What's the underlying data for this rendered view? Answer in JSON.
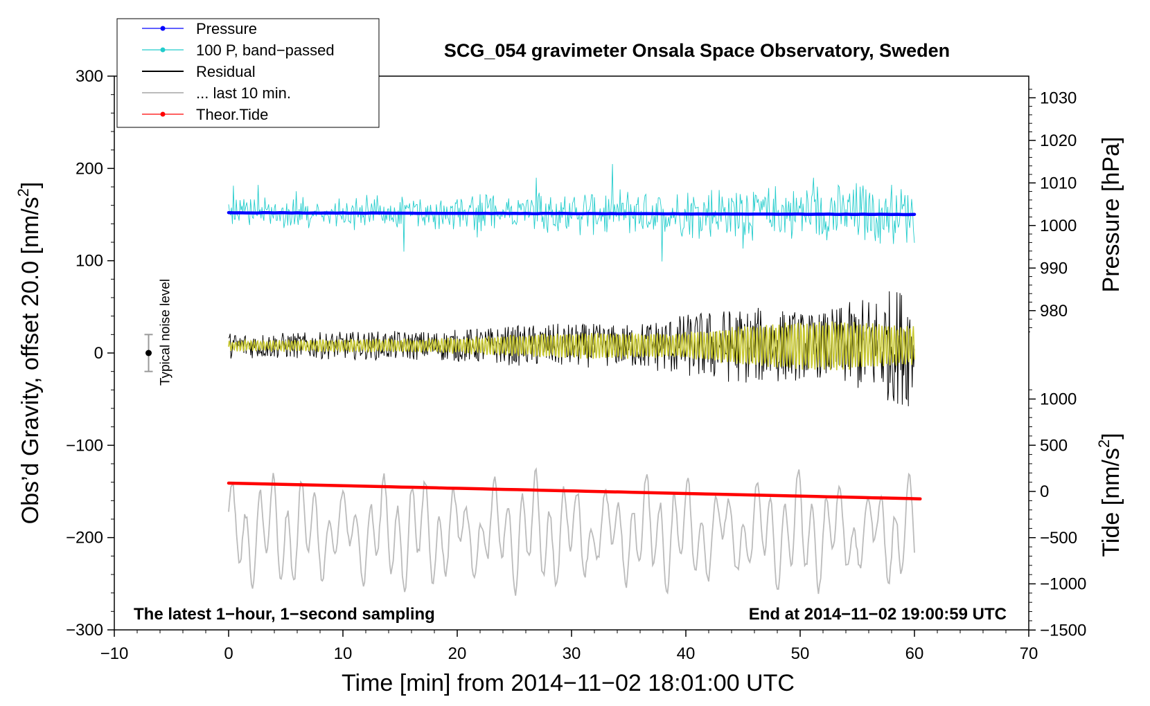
{
  "chart_data": {
    "type": "line",
    "title": "SCG_054 gravimeter Onsala Space Observatory, Sweden",
    "xlabel": "Time [min] from 2014−11−02 18:01:00 UTC",
    "ylabel_left_main": "Obs’d Gravity, offset 20.0 [nm/s",
    "ylabel_left_sup": "2",
    "ylabel_left_end": "]",
    "ylabel_right_pressure": "Pressure [hPa]",
    "ylabel_right_tide_main": "Tide [nm/s",
    "ylabel_right_tide_sup": "2",
    "ylabel_right_tide_end": "]",
    "xlim": [
      -10,
      70
    ],
    "ylim_left": [
      -300,
      300
    ],
    "xticks": [
      -10,
      0,
      10,
      20,
      30,
      40,
      50,
      60,
      70
    ],
    "xtick_labels": [
      "−10",
      "0",
      "10",
      "20",
      "30",
      "40",
      "50",
      "60",
      "70"
    ],
    "yticks_left": [
      -300,
      -200,
      -100,
      0,
      100,
      200,
      300
    ],
    "ytick_labels_left": [
      "−300",
      "−200",
      "−100",
      "0",
      "100",
      "200",
      "300"
    ],
    "pressure_axis": {
      "ticks": [
        980,
        990,
        1000,
        1010,
        1020,
        1030
      ],
      "tick_labels": [
        "980",
        "990",
        "1000",
        "1010",
        "1020",
        "1030"
      ],
      "data_range_hpa": [
        975,
        1033
      ]
    },
    "tide_axis": {
      "ticks": [
        -1500,
        -1000,
        -500,
        0,
        500,
        1000
      ],
      "tick_labels": [
        "−1500",
        "−1000",
        "−500",
        "0",
        "500",
        "1000"
      ],
      "data_range": [
        -1500,
        1200
      ]
    },
    "legend": {
      "position": "top-left",
      "entries": [
        {
          "label": "Pressure",
          "color": "#0000ff",
          "marker": "dot"
        },
        {
          "label": "100 P, band−passed",
          "color": "#22cccc",
          "marker": "dot"
        },
        {
          "label": "Residual",
          "color": "#000000",
          "marker": "none"
        },
        {
          "label": "... last 10 min.",
          "color": "#bbbbbb",
          "marker": "none"
        },
        {
          "label": "Theor.Tide",
          "color": "#ff0000",
          "marker": "dot"
        }
      ]
    },
    "series": [
      {
        "name": "Pressure",
        "color": "#0000ff",
        "axis": "pressure",
        "x_start": 0,
        "x_end": 60,
        "values_start": 1003.0,
        "values_end": 1002.6
      },
      {
        "name": "100 P, band−passed",
        "color": "#22cccc",
        "axis": "left",
        "x_start": 0,
        "x_end": 60,
        "center": 152,
        "amplitude_start": 12,
        "amplitude_end": 28
      },
      {
        "name": "Residual",
        "color": "#000000",
        "axis": "left",
        "x_start": 0,
        "x_end": 60,
        "center": 8,
        "amplitude_start": 14,
        "amplitude_end": 55
      },
      {
        "name": "Residual (smoothed)",
        "color": "#c8c832",
        "axis": "left",
        "x_start": 0,
        "x_end": 60,
        "center": 8,
        "amplitude_start": 5,
        "amplitude_end": 30
      },
      {
        "name": "... last 10 min.",
        "color": "#bbbbbb",
        "axis": "left",
        "x_start": 0,
        "x_end": 60,
        "center": -195,
        "amplitude": 45
      },
      {
        "name": "Theor.Tide",
        "color": "#ff0000",
        "axis": "tide",
        "x_start": 0,
        "x_end": 60.5,
        "values_start": 90,
        "values_end": -80
      }
    ],
    "noise_marker": {
      "label": "Typical noise level",
      "x": -7,
      "y": 0,
      "error": 20
    },
    "note_left": "The latest 1−hour, 1−second sampling",
    "note_right": "End at 2014−11−02 19:00:59 UTC",
    "colors": {
      "pressure": "#0000ff",
      "bandpassed": "#22cccc",
      "residual": "#000000",
      "smoothed": "#c8c832",
      "last10": "#bbbbbb",
      "tide": "#ff0000"
    }
  }
}
